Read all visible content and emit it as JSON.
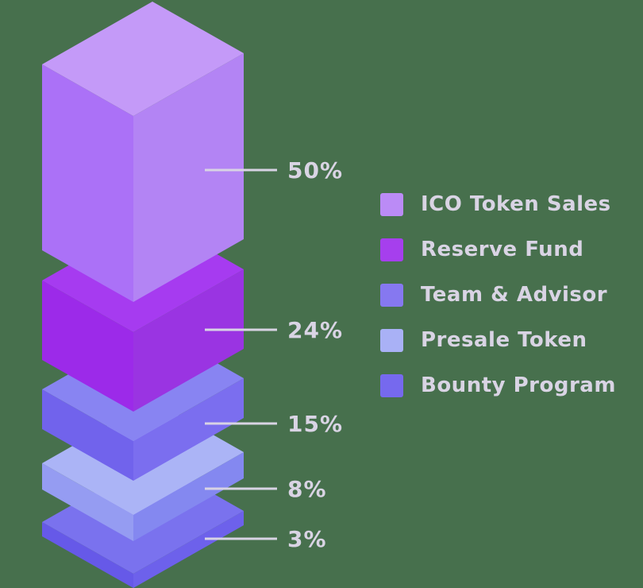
{
  "chart_data": {
    "type": "bar",
    "variant": "isometric-3d-stacked-tower",
    "title": "",
    "categories": [
      "ICO Token Sales",
      "Reserve Fund",
      "Team & Advisor",
      "Presale Token",
      "Bounty Program"
    ],
    "values": [
      50,
      24,
      15,
      8,
      3
    ],
    "value_labels": [
      "50%",
      "24%",
      "15%",
      "8%",
      "3%"
    ],
    "series_colors": [
      {
        "top": "#C49AF8",
        "left": "#AB71F7",
        "right": "#B384F4"
      },
      {
        "top": "#A63BF0",
        "left": "#9C2AE9",
        "right": "#9A34E2"
      },
      {
        "top": "#8884F2",
        "left": "#7163EC",
        "right": "#7B6EEF"
      },
      {
        "top": "#ABB4F6",
        "left": "#959CF2",
        "right": "#8488F0"
      },
      {
        "top": "#7A72EE",
        "left": "#6659E8",
        "right": "#6D61EB"
      }
    ],
    "legend_position": "right",
    "grid": false,
    "background_color": "#47704D",
    "label_color": "#D9D4E4",
    "callout_line_color": "#D8D3E4"
  },
  "legend": {
    "items": [
      {
        "label": "ICO Token Sales",
        "swatch": "#BB8BF6"
      },
      {
        "label": "Reserve Fund",
        "swatch": "#A63FED"
      },
      {
        "label": "Team & Advisor",
        "swatch": "#8678F0"
      },
      {
        "label": "Presale Token",
        "swatch": "#A9B1F6"
      },
      {
        "label": "Bounty Program",
        "swatch": "#7669EE"
      }
    ]
  }
}
